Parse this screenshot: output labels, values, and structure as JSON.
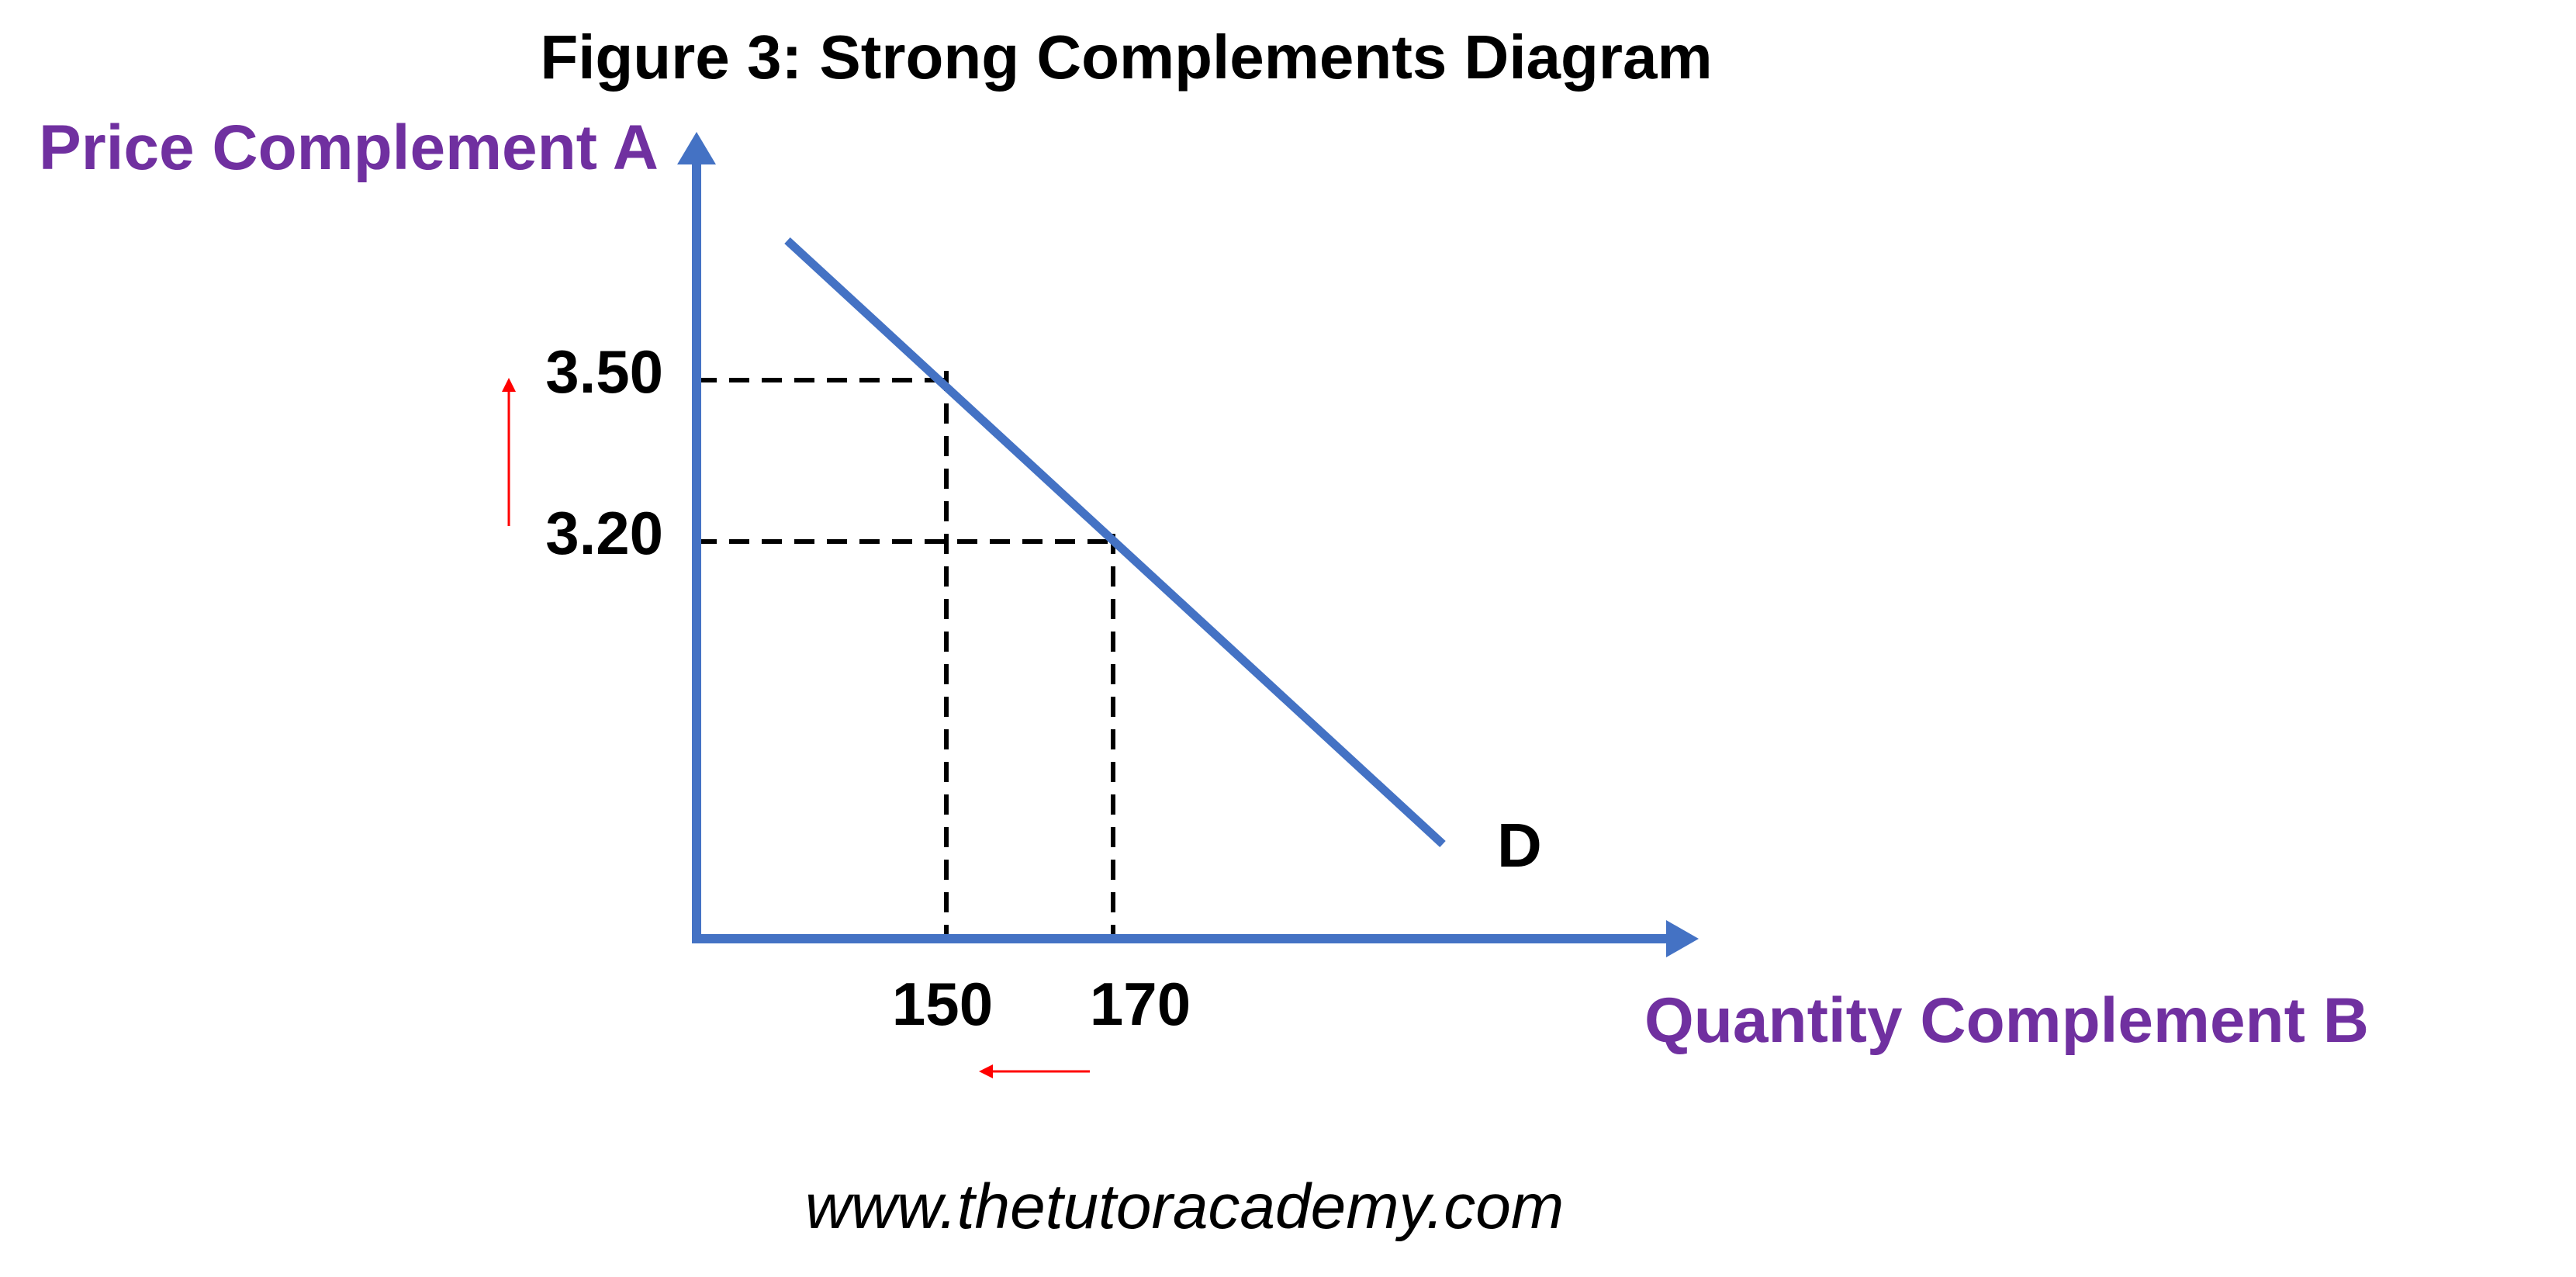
{
  "title": "Figure 3: Strong Complements Diagram",
  "axes": {
    "y_label": "Price Complement A",
    "x_label": "Quantity Complement B",
    "y_ticks": [
      "3.50",
      "3.20"
    ],
    "x_ticks": [
      "150",
      "170"
    ]
  },
  "curve": {
    "label": "D",
    "color": "#4472c4",
    "points": [
      {
        "price": 3.5,
        "quantity": 150
      },
      {
        "price": 3.2,
        "quantity": 170
      }
    ]
  },
  "annotations": {
    "price_change": "up",
    "quantity_change": "down",
    "arrow_color": "#ff0000"
  },
  "colors": {
    "axis": "#4472c4",
    "axis_label": "#7030a0",
    "guide_line": "#000000"
  },
  "footer": "www.thetutoracademy.com"
}
